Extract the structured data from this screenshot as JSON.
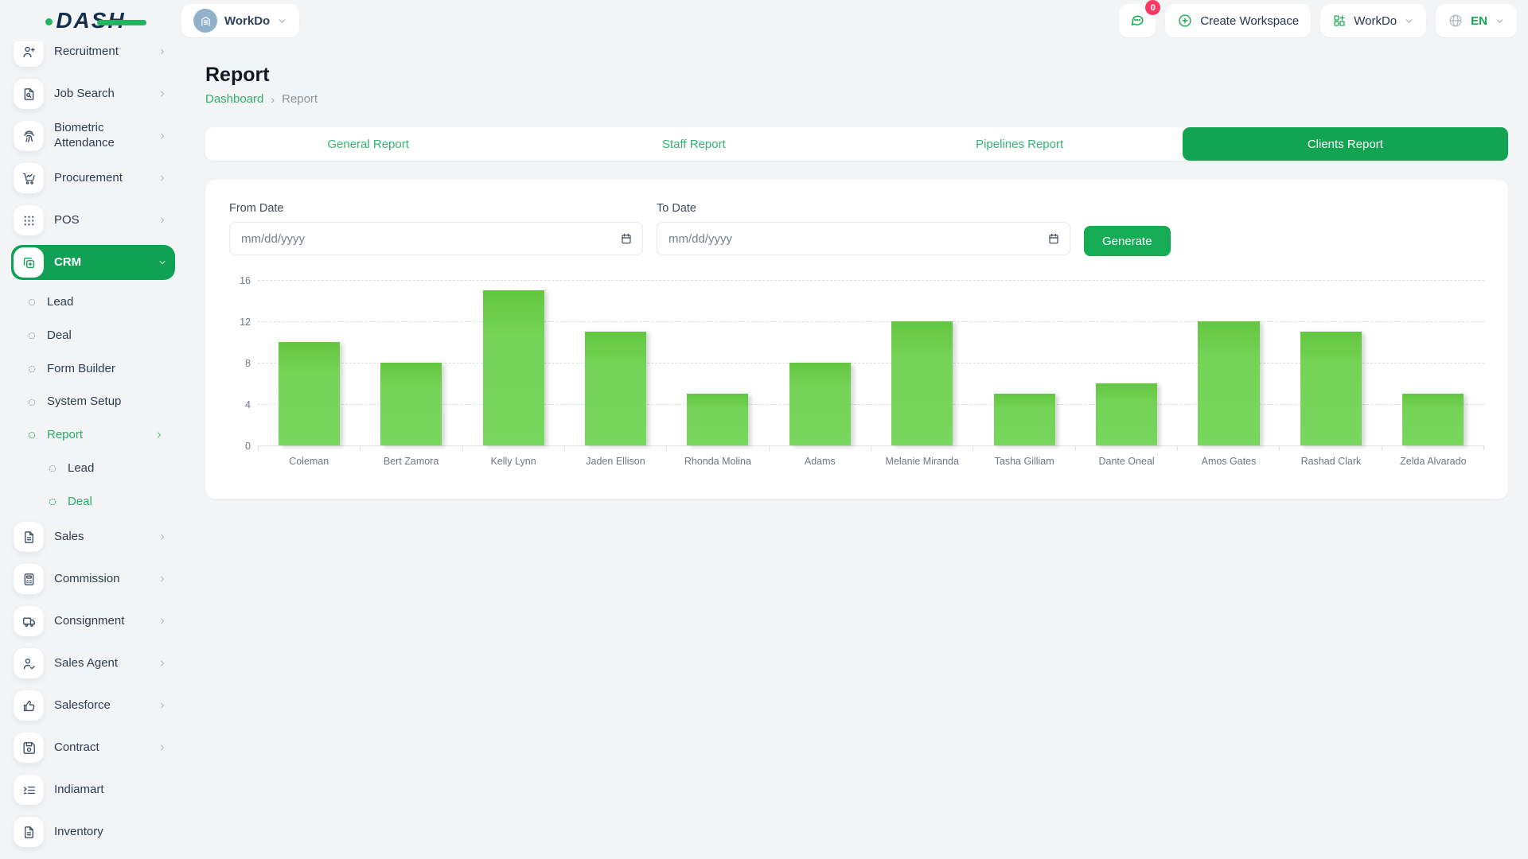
{
  "colors": {
    "accent_green": "#13a452",
    "sidebar_active_green": "#10a155",
    "link_green": "#2eb06b",
    "bar_green": "#71d151",
    "badge_pink": "#fb3a64",
    "logo_navy": "#14304f",
    "page_background": "#f2f4f6"
  },
  "topbar": {
    "logo_text": "DASH",
    "workspace_label": "WorkDo",
    "chat_badge": "0",
    "create_workspace_label": "Create Workspace",
    "workspace_menu_label": "WorkDo",
    "language_label": "EN"
  },
  "sidebar": {
    "items": [
      {
        "label": "Recruitment",
        "icon": "user-plus-icon",
        "has_children": true
      },
      {
        "label": "Job Search",
        "icon": "file-search-icon",
        "has_children": true
      },
      {
        "label": "Biometric Attendance",
        "icon": "fingerprint-icon",
        "has_children": true
      },
      {
        "label": "Procurement",
        "icon": "cart-chart-icon",
        "has_children": true
      },
      {
        "label": "POS",
        "icon": "grid-dots-icon",
        "has_children": true
      },
      {
        "label": "CRM",
        "icon": "copy-plus-icon",
        "has_children": true,
        "active": true,
        "expanded": true,
        "children": [
          {
            "label": "Lead"
          },
          {
            "label": "Deal"
          },
          {
            "label": "Form Builder"
          },
          {
            "label": "System Setup"
          },
          {
            "label": "Report",
            "active": true,
            "has_children": true,
            "expanded": true,
            "children": [
              {
                "label": "Lead"
              },
              {
                "label": "Deal",
                "active": true
              }
            ]
          }
        ]
      },
      {
        "label": "Sales",
        "icon": "file-icon",
        "has_children": true
      },
      {
        "label": "Commission",
        "icon": "calculator-icon",
        "has_children": true
      },
      {
        "label": "Consignment",
        "icon": "truck-icon",
        "has_children": true
      },
      {
        "label": "Sales Agent",
        "icon": "user-check-icon",
        "has_children": true
      },
      {
        "label": "Salesforce",
        "icon": "thumbs-up-icon",
        "has_children": true
      },
      {
        "label": "Contract",
        "icon": "save-icon",
        "has_children": true
      },
      {
        "label": "Indiamart",
        "icon": "list-indent-icon",
        "has_children": false
      },
      {
        "label": "Inventory",
        "icon": "file-text-icon",
        "has_children": false
      },
      {
        "label": "",
        "icon": "file-icon",
        "has_children": false,
        "partial": true
      }
    ]
  },
  "page": {
    "title": "Report",
    "breadcrumb": {
      "home": "Dashboard",
      "current": "Report"
    }
  },
  "tabs": [
    {
      "label": "General Report",
      "active": false
    },
    {
      "label": "Staff Report",
      "active": false
    },
    {
      "label": "Pipelines Report",
      "active": false
    },
    {
      "label": "Clients Report",
      "active": true
    }
  ],
  "filter": {
    "from_label": "From Date",
    "to_label": "To Date",
    "date_placeholder": "mm/dd/yyyy",
    "generate_label": "Generate"
  },
  "chart_data": {
    "type": "bar",
    "title": "",
    "xlabel": "",
    "ylabel": "",
    "categories": [
      "Coleman",
      "Bert Zamora",
      "Kelly Lynn",
      "Jaden Ellison",
      "Rhonda Molina",
      "Adams",
      "Melanie Miranda",
      "Tasha Gilliam",
      "Dante Oneal",
      "Amos Gates",
      "Rashad Clark",
      "Zelda Alvarado"
    ],
    "values": [
      10,
      8,
      15,
      11,
      5,
      8,
      12,
      5,
      6,
      12,
      11,
      5
    ],
    "ylim": [
      0,
      16
    ],
    "yticks": [
      0,
      4,
      8,
      12,
      16
    ],
    "grid": "horizontal-dashed",
    "legend": "none",
    "bar_color": "#71d151"
  }
}
